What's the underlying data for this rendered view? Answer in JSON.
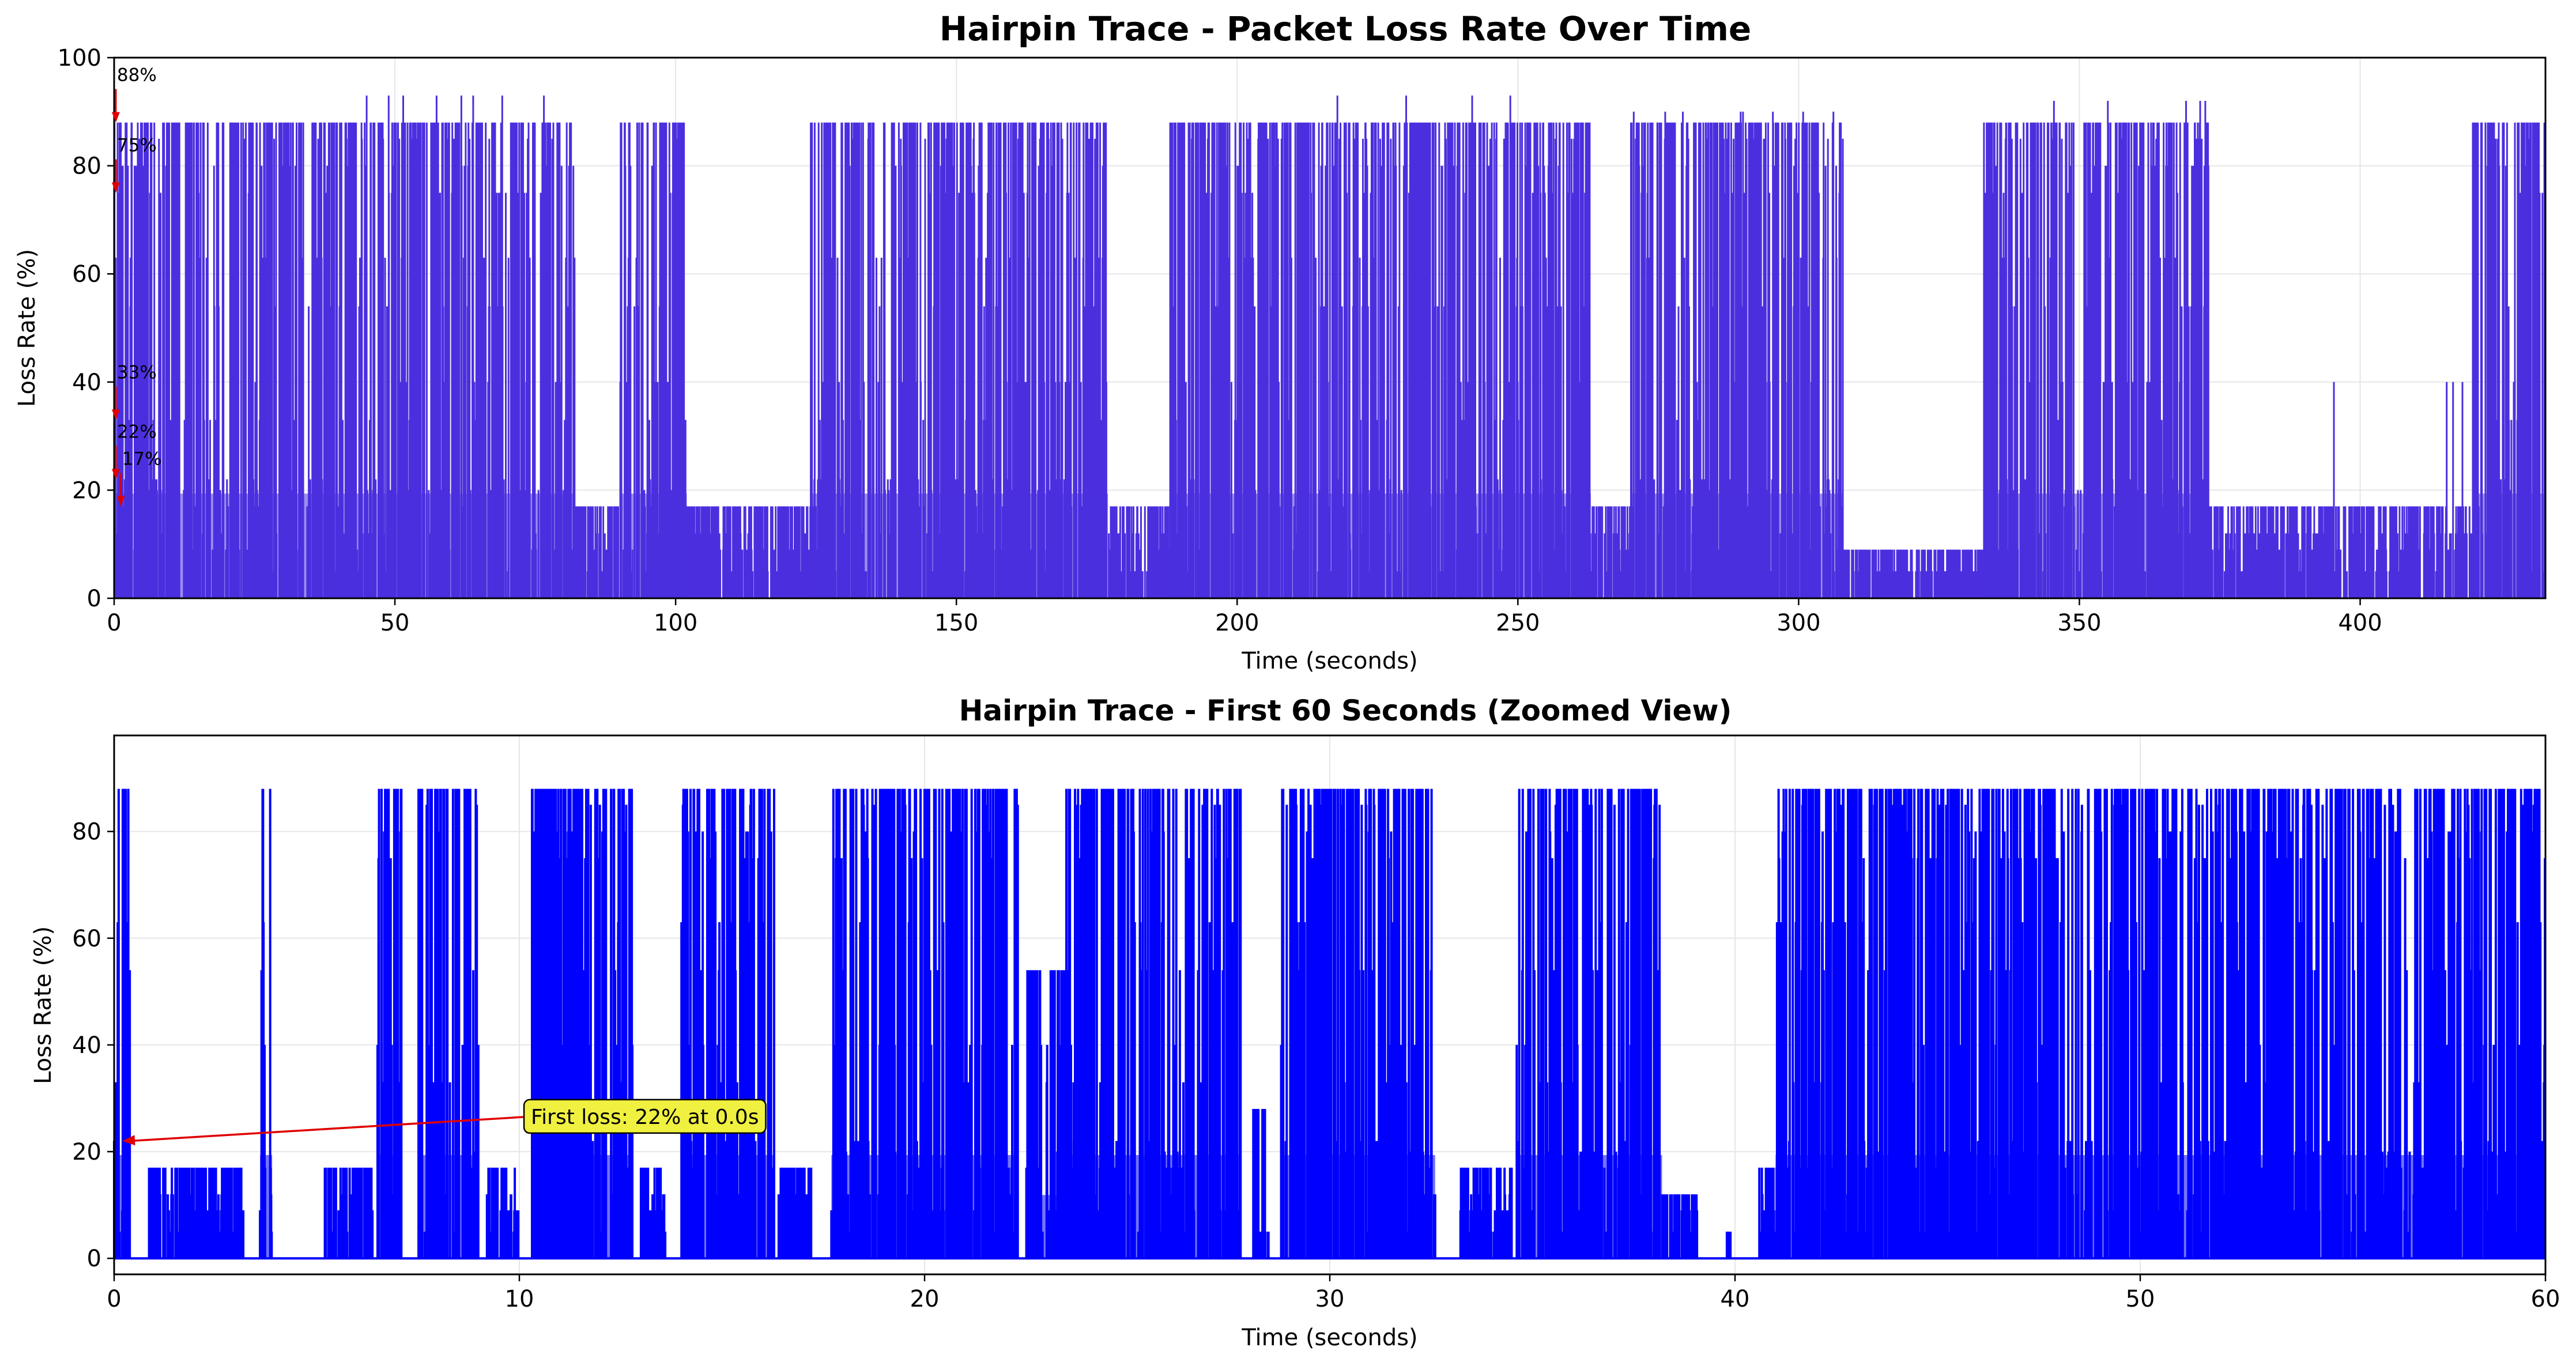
{
  "colors": {
    "top_series": "#4b2fdf",
    "zoom_series": "#0000ff",
    "zoom_under": "#ff9999",
    "annotation_arrow": "#e00000",
    "annotation_box": "#f0f040",
    "grid": "#e6e6e6"
  },
  "chart_data": [
    {
      "type": "area",
      "title": "Hairpin Trace - Packet Loss Rate Over Time",
      "xlabel": "Time (seconds)",
      "ylabel": "Loss Rate (%)",
      "xlim": [
        0,
        433
      ],
      "ylim": [
        0,
        100
      ],
      "xticks": [
        0,
        50,
        100,
        150,
        200,
        250,
        300,
        350,
        400
      ],
      "yticks": [
        0,
        20,
        40,
        60,
        80,
        100
      ],
      "grid": true,
      "loss_levels": [
        5,
        9,
        12,
        17,
        20,
        22,
        33,
        40,
        54,
        63,
        75,
        80,
        85,
        88
      ],
      "active_segments": [
        {
          "start": 0,
          "end": 4,
          "dominant_peak": 88
        },
        {
          "start": 4,
          "end": 40,
          "dominant_peak": 88
        },
        {
          "start": 40,
          "end": 82,
          "dominant_peak": 88,
          "max": 93
        },
        {
          "start": 82,
          "end": 90,
          "dominant_peak": 17
        },
        {
          "start": 90,
          "end": 102,
          "dominant_peak": 88
        },
        {
          "start": 102,
          "end": 124,
          "dominant_peak": 17
        },
        {
          "start": 124,
          "end": 177,
          "dominant_peak": 88
        },
        {
          "start": 177,
          "end": 188,
          "dominant_peak": 17
        },
        {
          "start": 188,
          "end": 207,
          "dominant_peak": 88
        },
        {
          "start": 207,
          "end": 263,
          "dominant_peak": 88,
          "max": 93
        },
        {
          "start": 263,
          "end": 270,
          "dominant_peak": 17
        },
        {
          "start": 270,
          "end": 308,
          "dominant_peak": 88,
          "max": 90
        },
        {
          "start": 308,
          "end": 333,
          "dominant_peak": 9
        },
        {
          "start": 333,
          "end": 344,
          "dominant_peak": 88
        },
        {
          "start": 344,
          "end": 373,
          "dominant_peak": 88,
          "max": 92
        },
        {
          "start": 373,
          "end": 420,
          "dominant_peak": 17,
          "max": 40
        },
        {
          "start": 420,
          "end": 433,
          "dominant_peak": 88
        }
      ],
      "annotations": [
        {
          "text": "88%",
          "value": 88,
          "x": 0.3
        },
        {
          "text": "75%",
          "value": 75,
          "x": 0.3
        },
        {
          "text": "33%",
          "value": 33,
          "x": 0.3
        },
        {
          "text": "22%",
          "value": 22,
          "x": 0.3
        },
        {
          "text": "17%",
          "value": 17,
          "x": 1.2
        }
      ]
    },
    {
      "type": "line",
      "title": "Hairpin Trace - First 60 Seconds (Zoomed View)",
      "xlabel": "Time (seconds)",
      "ylabel": "Loss Rate (%)",
      "xlim": [
        0,
        60
      ],
      "ylim": [
        -3,
        98
      ],
      "xticks": [
        0,
        10,
        20,
        30,
        40,
        50,
        60
      ],
      "yticks": [
        0,
        20,
        40,
        60,
        80
      ],
      "grid": true,
      "loss_levels": [
        5,
        9,
        12,
        17,
        20,
        22,
        33,
        40,
        54,
        63,
        75,
        80,
        85,
        88
      ],
      "active_segments": [
        {
          "start": 0,
          "end": 0.4,
          "dominant_peak": 88
        },
        {
          "start": 0.8,
          "end": 3.2,
          "dominant_peak": 17
        },
        {
          "start": 3.6,
          "end": 3.9,
          "dominant_peak": 88
        },
        {
          "start": 5.2,
          "end": 6.4,
          "dominant_peak": 17
        },
        {
          "start": 6.5,
          "end": 7.1,
          "dominant_peak": 88
        },
        {
          "start": 7.5,
          "end": 9.0,
          "dominant_peak": 88
        },
        {
          "start": 9.2,
          "end": 10.0,
          "dominant_peak": 17
        },
        {
          "start": 10.3,
          "end": 12.8,
          "dominant_peak": 88
        },
        {
          "start": 13.0,
          "end": 13.6,
          "dominant_peak": 17
        },
        {
          "start": 14.0,
          "end": 16.3,
          "dominant_peak": 88
        },
        {
          "start": 16.4,
          "end": 17.2,
          "dominant_peak": 17
        },
        {
          "start": 17.7,
          "end": 20.8,
          "dominant_peak": 88
        },
        {
          "start": 20.8,
          "end": 22.3,
          "dominant_peak": 88
        },
        {
          "start": 22.5,
          "end": 24.0,
          "dominant_peak": 54
        },
        {
          "start": 23.5,
          "end": 27.8,
          "dominant_peak": 88
        },
        {
          "start": 28.1,
          "end": 28.5,
          "dominant_peak": 28
        },
        {
          "start": 28.8,
          "end": 32.6,
          "dominant_peak": 88
        },
        {
          "start": 33.2,
          "end": 34.5,
          "dominant_peak": 17
        },
        {
          "start": 34.6,
          "end": 38.2,
          "dominant_peak": 88
        },
        {
          "start": 38.2,
          "end": 39.1,
          "dominant_peak": 12
        },
        {
          "start": 39.8,
          "end": 39.9,
          "dominant_peak": 5
        },
        {
          "start": 40.6,
          "end": 41.3,
          "dominant_peak": 17
        },
        {
          "start": 41.0,
          "end": 45.2,
          "dominant_peak": 88
        },
        {
          "start": 45.2,
          "end": 48.2,
          "dominant_peak": 88
        },
        {
          "start": 48.2,
          "end": 51.6,
          "dominant_peak": 88
        },
        {
          "start": 51.6,
          "end": 54.0,
          "dominant_peak": 88
        },
        {
          "start": 54.0,
          "end": 60.0,
          "dominant_peak": 88
        }
      ],
      "annotation": {
        "text": "First loss: 22% at 0.0s",
        "x": 0.2,
        "y": 22
      }
    }
  ]
}
